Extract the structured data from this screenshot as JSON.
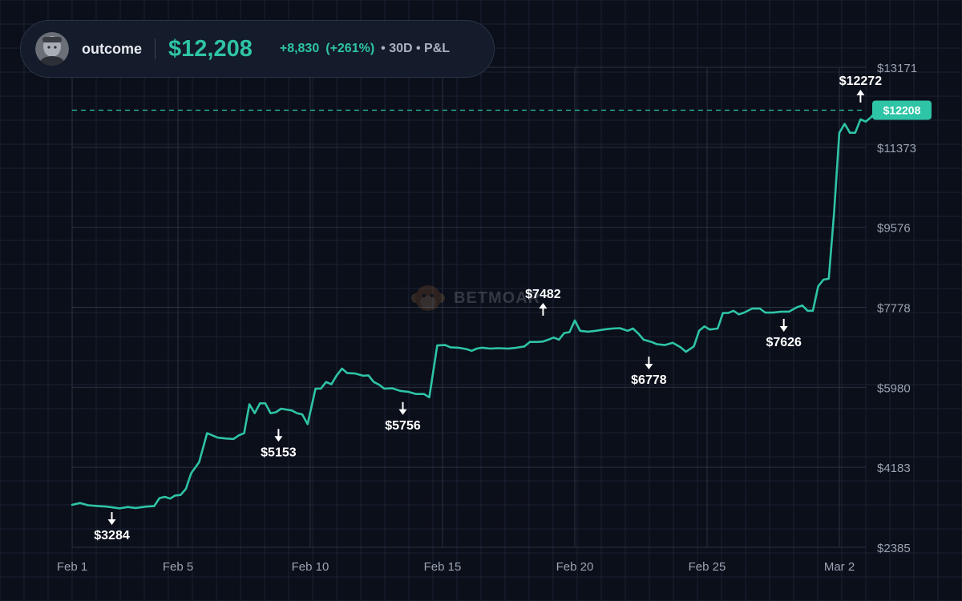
{
  "header": {
    "username": "outcome",
    "value": "$12,208",
    "change": "+8,830",
    "change_pct": "(+261%)",
    "meta": "• 30D • P&L"
  },
  "watermark": {
    "text": "BETMOAR"
  },
  "colors": {
    "background": "#0b0f1a",
    "line": "#2ec4a6",
    "grid": "#1a2232",
    "grid_major": "#2a3142",
    "text": "#e6e9ef",
    "muted": "#9aa3b2"
  },
  "chart_data": {
    "type": "line",
    "title": "",
    "xlabel": "",
    "ylabel": "",
    "x_ticks": [
      {
        "day": 0,
        "label": "Feb 1"
      },
      {
        "day": 4,
        "label": "Feb 5"
      },
      {
        "day": 9,
        "label": "Feb 10"
      },
      {
        "day": 14,
        "label": "Feb 15"
      },
      {
        "day": 19,
        "label": "Feb 20"
      },
      {
        "day": 24,
        "label": "Feb 25"
      },
      {
        "day": 29,
        "label": "Mar 2"
      }
    ],
    "y_ticks": [
      "$2385",
      "$4183",
      "$5980",
      "$7778",
      "$9576",
      "$11373",
      "$13171"
    ],
    "ylim": [
      2385,
      13171
    ],
    "xlim": [
      0,
      30
    ],
    "grid": true,
    "current_value_label": "$12208",
    "current_value": 12208,
    "annotations": [
      {
        "day": 1.5,
        "value": 3284,
        "label": "$3284",
        "direction": "down"
      },
      {
        "day": 7.8,
        "value": 5153,
        "label": "$5153",
        "direction": "down"
      },
      {
        "day": 12.5,
        "value": 5756,
        "label": "$5756",
        "direction": "down"
      },
      {
        "day": 17.8,
        "value": 7482,
        "label": "$7482",
        "direction": "up"
      },
      {
        "day": 21.8,
        "value": 6778,
        "label": "$6778",
        "direction": "down"
      },
      {
        "day": 26.9,
        "value": 7626,
        "label": "$7626",
        "direction": "down"
      },
      {
        "day": 29.8,
        "value": 12272,
        "label": "$12272",
        "direction": "up"
      }
    ],
    "series": [
      {
        "points": [
          [
            0.0,
            3340
          ],
          [
            0.3,
            3380
          ],
          [
            0.6,
            3330
          ],
          [
            1.0,
            3310
          ],
          [
            1.3,
            3300
          ],
          [
            1.5,
            3284
          ],
          [
            1.8,
            3260
          ],
          [
            2.1,
            3290
          ],
          [
            2.4,
            3270
          ],
          [
            2.8,
            3300
          ],
          [
            3.1,
            3310
          ],
          [
            3.3,
            3490
          ],
          [
            3.5,
            3520
          ],
          [
            3.7,
            3480
          ],
          [
            3.9,
            3550
          ],
          [
            4.1,
            3560
          ],
          [
            4.3,
            3700
          ],
          [
            4.5,
            4050
          ],
          [
            4.8,
            4300
          ],
          [
            5.1,
            4950
          ],
          [
            5.3,
            4900
          ],
          [
            5.5,
            4850
          ],
          [
            5.8,
            4830
          ],
          [
            6.1,
            4820
          ],
          [
            6.3,
            4900
          ],
          [
            6.5,
            4950
          ],
          [
            6.7,
            5600
          ],
          [
            6.9,
            5400
          ],
          [
            7.1,
            5620
          ],
          [
            7.3,
            5620
          ],
          [
            7.5,
            5400
          ],
          [
            7.7,
            5420
          ],
          [
            7.9,
            5500
          ],
          [
            8.1,
            5480
          ],
          [
            8.3,
            5460
          ],
          [
            8.5,
            5400
          ],
          [
            8.7,
            5370
          ],
          [
            8.9,
            5153
          ],
          [
            9.2,
            5950
          ],
          [
            9.4,
            5950
          ],
          [
            9.6,
            6100
          ],
          [
            9.8,
            6050
          ],
          [
            10.0,
            6250
          ],
          [
            10.2,
            6400
          ],
          [
            10.4,
            6300
          ],
          [
            10.7,
            6290
          ],
          [
            11.0,
            6240
          ],
          [
            11.2,
            6250
          ],
          [
            11.4,
            6100
          ],
          [
            11.6,
            6040
          ],
          [
            11.8,
            5950
          ],
          [
            12.1,
            5960
          ],
          [
            12.4,
            5900
          ],
          [
            12.7,
            5880
          ],
          [
            13.0,
            5830
          ],
          [
            13.3,
            5830
          ],
          [
            13.5,
            5756
          ],
          [
            13.8,
            6920
          ],
          [
            14.1,
            6930
          ],
          [
            14.3,
            6880
          ],
          [
            14.6,
            6870
          ],
          [
            14.9,
            6840
          ],
          [
            15.1,
            6800
          ],
          [
            15.3,
            6850
          ],
          [
            15.5,
            6870
          ],
          [
            15.8,
            6850
          ],
          [
            16.1,
            6860
          ],
          [
            16.5,
            6850
          ],
          [
            16.8,
            6870
          ],
          [
            17.1,
            6900
          ],
          [
            17.3,
            7000
          ],
          [
            17.6,
            7000
          ],
          [
            17.8,
            7010
          ],
          [
            18.0,
            7050
          ],
          [
            18.2,
            7100
          ],
          [
            18.4,
            7050
          ],
          [
            18.6,
            7200
          ],
          [
            18.8,
            7220
          ],
          [
            19.0,
            7482
          ],
          [
            19.2,
            7250
          ],
          [
            19.5,
            7230
          ],
          [
            19.8,
            7250
          ],
          [
            20.1,
            7280
          ],
          [
            20.4,
            7300
          ],
          [
            20.7,
            7310
          ],
          [
            21.0,
            7250
          ],
          [
            21.2,
            7300
          ],
          [
            21.4,
            7190
          ],
          [
            21.6,
            7050
          ],
          [
            21.9,
            7000
          ],
          [
            22.1,
            6950
          ],
          [
            22.4,
            6930
          ],
          [
            22.7,
            6980
          ],
          [
            23.0,
            6880
          ],
          [
            23.2,
            6778
          ],
          [
            23.5,
            6900
          ],
          [
            23.7,
            7250
          ],
          [
            23.9,
            7350
          ],
          [
            24.1,
            7280
          ],
          [
            24.4,
            7300
          ],
          [
            24.6,
            7650
          ],
          [
            24.8,
            7650
          ],
          [
            25.0,
            7700
          ],
          [
            25.2,
            7620
          ],
          [
            25.4,
            7660
          ],
          [
            25.7,
            7750
          ],
          [
            26.0,
            7750
          ],
          [
            26.2,
            7660
          ],
          [
            26.5,
            7660
          ],
          [
            26.8,
            7680
          ],
          [
            27.1,
            7680
          ],
          [
            27.4,
            7780
          ],
          [
            27.6,
            7820
          ],
          [
            27.8,
            7700
          ],
          [
            28.0,
            7700
          ],
          [
            28.2,
            8250
          ],
          [
            28.4,
            8400
          ],
          [
            28.6,
            8420
          ],
          [
            28.8,
            9900
          ],
          [
            29.0,
            11700
          ],
          [
            29.2,
            11900
          ],
          [
            29.4,
            11700
          ],
          [
            29.6,
            11700
          ],
          [
            29.8,
            12000
          ],
          [
            30.0,
            11950
          ],
          [
            30.2,
            12050
          ],
          [
            30.4,
            12208
          ]
        ]
      }
    ]
  }
}
